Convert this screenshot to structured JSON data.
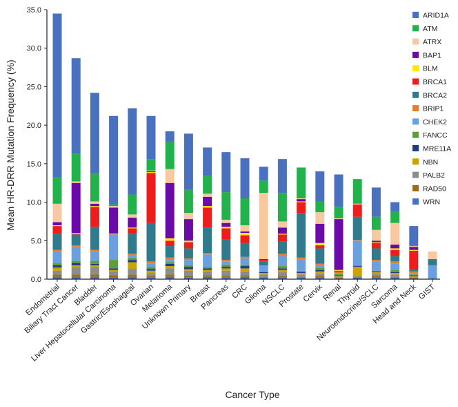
{
  "chart_data": {
    "type": "bar",
    "stacked": true,
    "title": "",
    "xlabel": "Cancer Type",
    "ylabel": "Mean HR-DRR Mutation Frequency (%)",
    "ylim": [
      0,
      35
    ],
    "yticks": [
      "0.0",
      "5.0",
      "10.0",
      "15.0",
      "20.0",
      "25.0",
      "30.0",
      "35.0"
    ],
    "grid": false,
    "legend_position": "top-right",
    "categories": [
      "Endometrial",
      "Biliary Tract Cancer",
      "Bladder",
      "Liver Hepatocellular Carcinoma",
      "Gastric/Esophageal",
      "Ovarian",
      "Melanoma",
      "Unknown Primary",
      "Breast",
      "Pancreas",
      "CRC",
      "Glioma",
      "NSCLC",
      "Prostate",
      "Cervix",
      "Renal",
      "Thyroid",
      "Neuroendocrine/SCLC",
      "Sarcoma",
      "Head and Neck",
      "GIST"
    ],
    "series": [
      {
        "name": "WRN",
        "color": "#4472c4",
        "values": [
          0.3,
          0.3,
          0.3,
          0.2,
          0.3,
          0.2,
          0.3,
          0.2,
          0.3,
          0.2,
          0.3,
          0.2,
          0.2,
          0.2,
          0.2,
          0.1,
          0.2,
          0.2,
          0.2,
          0.1,
          0
        ]
      },
      {
        "name": "RAD50",
        "color": "#9c6a1e",
        "values": [
          0.3,
          0.3,
          0.3,
          0.3,
          0.3,
          0.2,
          0.3,
          0.2,
          0.2,
          0.2,
          0.2,
          0.1,
          0.2,
          0.1,
          0.2,
          0.1,
          0.1,
          0.2,
          0.1,
          0.1,
          0
        ]
      },
      {
        "name": "PALB2",
        "color": "#8c8c8c",
        "values": [
          0.5,
          1.0,
          1.0,
          0.5,
          0.7,
          0.4,
          0.8,
          0.7,
          0.5,
          0.7,
          0.5,
          0.3,
          0.5,
          0.3,
          0.3,
          0.1,
          0.1,
          0.3,
          0.3,
          0.1,
          0
        ]
      },
      {
        "name": "NBN",
        "color": "#c9a400",
        "values": [
          0.4,
          0.2,
          0.2,
          0.2,
          0.9,
          0.3,
          0.3,
          0.2,
          0.2,
          0.3,
          0.4,
          0.2,
          0.3,
          0.2,
          0.3,
          0.1,
          1.2,
          0.2,
          0.2,
          0.1,
          0
        ]
      },
      {
        "name": "MRE11A",
        "color": "#203a8c",
        "values": [
          0.3,
          0.3,
          0.2,
          0.2,
          0.3,
          0.2,
          0.3,
          0.3,
          0.2,
          0.2,
          0.3,
          0.1,
          0.2,
          0.1,
          0.2,
          0.1,
          0.1,
          0.1,
          0.1,
          0.1,
          0
        ]
      },
      {
        "name": "FANCC",
        "color": "#5c9e38",
        "values": [
          0.3,
          0.3,
          0.4,
          1.1,
          0.3,
          0.3,
          0.2,
          0.2,
          0.2,
          0.3,
          0.2,
          0.1,
          0.3,
          0.2,
          0.3,
          0.2,
          0.1,
          0.1,
          0.3,
          0.1,
          0
        ]
      },
      {
        "name": "CHEK2",
        "color": "#6a9fe0",
        "values": [
          1.5,
          1.8,
          1.2,
          3.3,
          0.3,
          0.4,
          0.3,
          0.7,
          1.6,
          0.4,
          0.8,
          0.7,
          1.3,
          1.5,
          0.3,
          0.1,
          3.2,
          1.2,
          0.8,
          0.2,
          1.8
        ]
      },
      {
        "name": "BRIP1",
        "color": "#e08030",
        "values": [
          0.2,
          0.2,
          0.2,
          0.1,
          0.2,
          0.3,
          0.3,
          0.2,
          0.2,
          0.2,
          0.2,
          0.1,
          0.3,
          0.2,
          0.2,
          0.1,
          0.1,
          0.2,
          0.3,
          0.2,
          0
        ]
      },
      {
        "name": "BRCA2",
        "color": "#2f7a8c",
        "values": [
          2.1,
          1.4,
          3.0,
          0,
          2.6,
          5.0,
          1.5,
          1.3,
          3.3,
          2.7,
          1.8,
          0.5,
          1.6,
          5.8,
          2.0,
          0.1,
          3.0,
          1.5,
          0.7,
          0.3,
          0.8
        ]
      },
      {
        "name": "BRCA1",
        "color": "#ee1c1c",
        "values": [
          1.0,
          0.1,
          2.6,
          0.1,
          0.7,
          6.5,
          0.7,
          0.8,
          2.6,
          1.4,
          1.0,
          0.2,
          0.9,
          1.4,
          0.4,
          0.1,
          1.6,
          0.7,
          0.8,
          2.4,
          0
        ]
      },
      {
        "name": "BLM",
        "color": "#ffea00",
        "values": [
          0.1,
          0.1,
          0.1,
          0,
          0.1,
          0.1,
          0.3,
          0.2,
          0.2,
          0.2,
          0.3,
          0,
          0.1,
          0.1,
          0.3,
          0.1,
          0,
          0.1,
          0.2,
          0.1,
          0
        ]
      },
      {
        "name": "BAP1",
        "color": "#6a0aa8",
        "values": [
          0.4,
          6.5,
          0.3,
          3.3,
          1.3,
          0.1,
          7.2,
          2.8,
          1.2,
          0.5,
          0.2,
          0.1,
          0.8,
          0.3,
          2.5,
          6.6,
          0,
          0.2,
          0.5,
          0.4,
          0
        ]
      },
      {
        "name": "ATRX",
        "color": "#f8c9a0",
        "values": [
          2.4,
          0.2,
          0.3,
          0.2,
          0.4,
          0.1,
          1.8,
          0.8,
          0.4,
          0.4,
          0.8,
          8.6,
          0.8,
          0.1,
          1.5,
          0.1,
          0.1,
          1.4,
          2.8,
          0.1,
          1.0
        ]
      },
      {
        "name": "ATM",
        "color": "#22b24c",
        "values": [
          3.4,
          3.6,
          3.6,
          0.2,
          2.6,
          1.5,
          3.5,
          3.0,
          2.3,
          3.6,
          3.5,
          1.6,
          3.7,
          4.0,
          1.4,
          1.5,
          3.2,
          1.7,
          1.5,
          0.1,
          0
        ]
      },
      {
        "name": "ARID1A",
        "color": "#4a70c0",
        "values": [
          21.3,
          12.4,
          10.5,
          11.5,
          11.2,
          5.6,
          1.4,
          7.3,
          3.7,
          5.2,
          5.2,
          1.8,
          4.4,
          0,
          3.9,
          4.2,
          0,
          3.8,
          1.2,
          2.5,
          0
        ]
      }
    ]
  }
}
